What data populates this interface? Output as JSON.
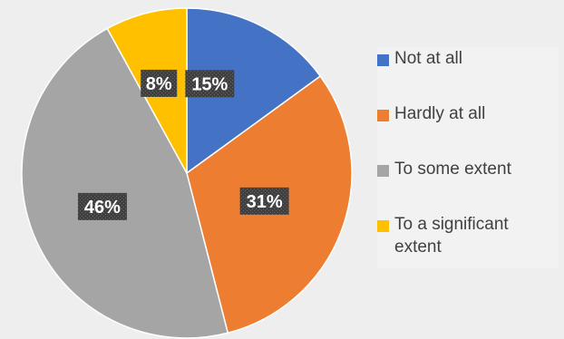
{
  "chart_data": {
    "type": "pie",
    "title": "",
    "categories": [
      "Not at all",
      "Hardly at all",
      "To some extent",
      "To a significant extent"
    ],
    "values": [
      15,
      31,
      46,
      8
    ],
    "labels": [
      "15%",
      "31%",
      "46%",
      "8%"
    ],
    "colors": [
      "#4472c4",
      "#ed7d31",
      "#a5a5a5",
      "#ffc000"
    ],
    "start_angle": "12 o'clock",
    "direction": "clockwise",
    "legend_position": "right"
  },
  "legend": {
    "items": [
      {
        "label": "Not at all",
        "color": "#4472c4"
      },
      {
        "label": "Hardly at all",
        "color": "#ed7d31"
      },
      {
        "label": "To some extent",
        "color": "#a5a5a5"
      },
      {
        "label": "To a significant\nextent",
        "color": "#ffc000"
      }
    ]
  }
}
